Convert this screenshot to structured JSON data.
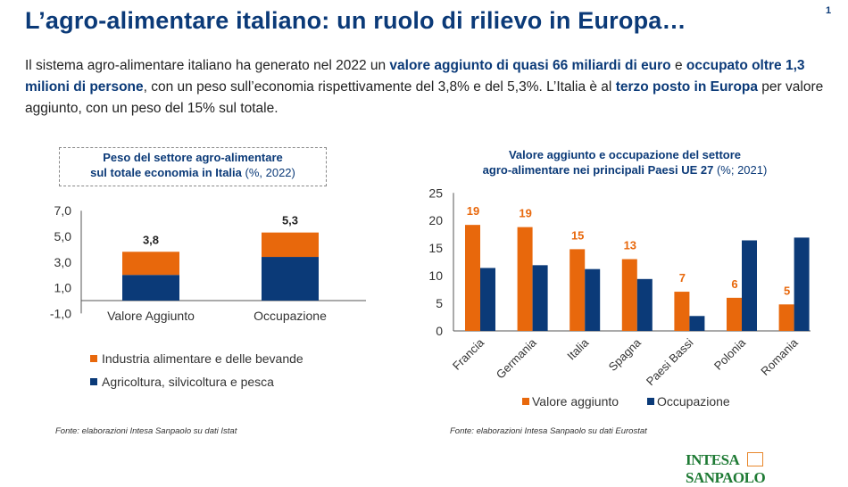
{
  "header": {
    "title": "L’agro-alimentare italiano: un ruolo di rilievo in Europa…",
    "page_number": "1"
  },
  "intro": {
    "t1": "Il sistema agro-alimentare italiano ha generato nel 2022 un ",
    "b1": "valore aggiunto di quasi 66 miliardi di euro",
    "t2": " e ",
    "b2": "occupato oltre 1,3 milioni di persone",
    "t3": ", con un peso sull’economia rispettivamente del 3,8% e del 5,3%. L’Italia è al ",
    "b3": "terzo posto in Europa",
    "t4": " per valore aggiunto, con un peso del 15% sul totale."
  },
  "colors": {
    "orange": "#e8680c",
    "blue": "#0b3a78"
  },
  "chart_data": [
    {
      "type": "bar",
      "stacked": true,
      "title": "Peso del settore agro-alimentare sul totale economia in Italia",
      "title_line1": "Peso del settore agro-alimentare",
      "title_line2": "sul totale economia in Italia",
      "title_unit": "(%, 2022)",
      "categories": [
        "Valore Aggiunto",
        "Occupazione"
      ],
      "series": [
        {
          "name": "Agricoltura, silvicoltura e pesca",
          "color": "#0b3a78",
          "values": [
            2.0,
            3.4
          ]
        },
        {
          "name": "Industria alimentare e delle bevande",
          "color": "#e8680c",
          "values": [
            1.8,
            1.9
          ]
        }
      ],
      "totals": [
        "3,8",
        "5,3"
      ],
      "yticks": [
        "-1,0",
        "1,0",
        "3,0",
        "5,0",
        "7,0"
      ],
      "ylim": [
        -1,
        7
      ],
      "legend": "bottom",
      "source": "Fonte: elaborazioni Intesa Sanpaolo su dati Istat"
    },
    {
      "type": "bar",
      "title_line1": "Valore aggiunto e occupazione del settore",
      "title_line2": "agro-alimentare nei principali Paesi UE 27",
      "title_unit": "(%; 2021)",
      "categories": [
        "Francia",
        "Germania",
        "Italia",
        "Spagna",
        "Paesi Bassi",
        "Polonia",
        "Romania"
      ],
      "series": [
        {
          "name": "Valore aggiunto",
          "color": "#e8680c",
          "values": [
            19.2,
            18.8,
            14.8,
            13.0,
            7.1,
            6.0,
            4.8
          ],
          "labels": [
            "19",
            "19",
            "15",
            "13",
            "7",
            "6",
            "5"
          ]
        },
        {
          "name": "Occupazione",
          "color": "#0b3a78",
          "values": [
            11.4,
            11.9,
            11.2,
            9.4,
            2.7,
            16.4,
            16.9
          ]
        }
      ],
      "yticks": [
        "0",
        "5",
        "10",
        "15",
        "20",
        "25"
      ],
      "ylim": [
        0,
        25
      ],
      "legend": "bottom",
      "source": "Fonte: elaborazioni Intesa Sanpaolo su dati Eurostat"
    }
  ],
  "logo": {
    "left": "INTESA",
    "right": "SANPAOLO"
  }
}
